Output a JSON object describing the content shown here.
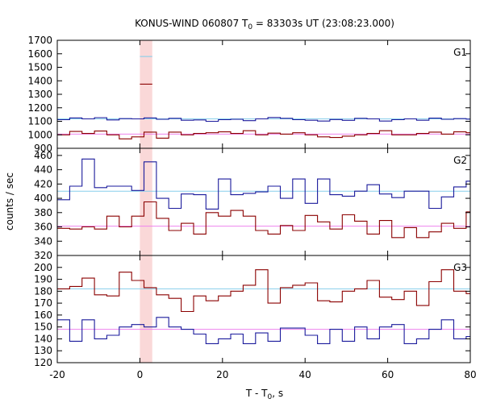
{
  "chart_data": {
    "type": "line",
    "title_main": "KONUS-WIND 060807 T",
    "title_sub": "0",
    "title_rest": " = 83303s UT (23:08:23.000)",
    "xlabel_main": "T - T",
    "xlabel_sub": "0",
    "xlabel_rest": ", s",
    "ylabel": "counts / sec",
    "xlim": [
      -20,
      80
    ],
    "xticks": [
      -20,
      0,
      20,
      40,
      60,
      80
    ],
    "highlight_band": [
      0,
      3
    ],
    "colors": {
      "low_series": "#8b0000",
      "high_series": "#1a1a9c",
      "low_background": "#ee82ee",
      "high_background": "#87ceeb",
      "band": "#f8c8c8"
    },
    "panels": [
      {
        "label": "G1",
        "ylim": [
          900,
          1700
        ],
        "yticks": [
          900,
          1000,
          1100,
          1200,
          1300,
          1400,
          1500,
          1600,
          1700
        ],
        "background_levels": [
          1005,
          1118
        ],
        "series": [
          {
            "color_key": "high_series",
            "edges": [
              -20,
              -17,
              -14,
              -11,
              -8,
              -5,
              -2,
              1,
              4,
              7,
              10,
              13,
              16,
              19,
              22,
              25,
              28,
              31,
              34,
              37,
              40,
              43,
              46,
              49,
              52,
              55,
              58,
              61,
              64,
              67,
              70,
              73,
              76,
              79,
              80
            ],
            "values": [
              1112,
              1125,
              1118,
              1127,
              1110,
              1120,
              1118,
              1125,
              1115,
              1122,
              1108,
              1110,
              1100,
              1112,
              1115,
              1105,
              1118,
              1128,
              1122,
              1112,
              1108,
              1102,
              1113,
              1107,
              1122,
              1118,
              1102,
              1112,
              1118,
              1108,
              1123,
              1115,
              1120,
              1116
            ]
          },
          {
            "color_key": "low_series",
            "edges": [
              -20,
              -17,
              -14,
              -11,
              -8,
              -5,
              -2,
              1,
              4,
              7,
              10,
              13,
              16,
              19,
              22,
              25,
              28,
              31,
              34,
              37,
              40,
              43,
              46,
              49,
              52,
              55,
              58,
              61,
              64,
              67,
              70,
              73,
              76,
              79,
              80
            ],
            "values": [
              1000,
              1025,
              1010,
              1028,
              1000,
              970,
              985,
              1020,
              975,
              1020,
              1000,
              1010,
              1015,
              1022,
              1010,
              1030,
              1000,
              1012,
              1005,
              1015,
              1000,
              985,
              980,
              990,
              1000,
              1010,
              1030,
              1000,
              1000,
              1010,
              1020,
              1005,
              1022,
              1015
            ]
          },
          {
            "color_key": "high_background",
            "edges": [
              0,
              3
            ],
            "values": [
              1580
            ]
          },
          {
            "color_key": "low_series",
            "edges": [
              0,
              3
            ],
            "values": [
              1375
            ]
          }
        ]
      },
      {
        "label": "G2",
        "ylim": [
          320,
          470
        ],
        "yticks": [
          320,
          340,
          360,
          380,
          400,
          420,
          440,
          460
        ],
        "background_levels": [
          361,
          410
        ],
        "series": [
          {
            "color_key": "high_series",
            "edges": [
              -20,
              -17,
              -14,
              -11,
              -8,
              -5,
              -2,
              1,
              4,
              7,
              10,
              13,
              16,
              19,
              22,
              25,
              28,
              31,
              34,
              37,
              40,
              43,
              46,
              49,
              52,
              55,
              58,
              61,
              64,
              67,
              70,
              73,
              76,
              79,
              80
            ],
            "values": [
              398,
              417,
              455,
              415,
              417,
              417,
              411,
              451,
              400,
              386,
              406,
              405,
              385,
              427,
              405,
              407,
              409,
              417,
              400,
              427,
              393,
              427,
              405,
              403,
              410,
              419,
              406,
              401,
              410,
              410,
              386,
              402,
              416,
              424
            ]
          },
          {
            "color_key": "low_series",
            "edges": [
              -20,
              -17,
              -14,
              -11,
              -8,
              -5,
              -2,
              1,
              4,
              7,
              10,
              13,
              16,
              19,
              22,
              25,
              28,
              31,
              34,
              37,
              40,
              43,
              46,
              49,
              52,
              55,
              58,
              61,
              64,
              67,
              70,
              73,
              76,
              79,
              80
            ],
            "values": [
              358,
              357,
              360,
              357,
              375,
              360,
              375,
              395,
              372,
              355,
              365,
              350,
              380,
              375,
              383,
              375,
              355,
              350,
              362,
              355,
              376,
              367,
              357,
              377,
              368,
              350,
              369,
              345,
              359,
              345,
              353,
              365,
              358,
              381
            ]
          }
        ]
      },
      {
        "label": "G3",
        "ylim": [
          120,
          210
        ],
        "yticks": [
          120,
          130,
          140,
          150,
          160,
          170,
          180,
          190,
          200
        ],
        "background_levels": [
          148,
          182
        ],
        "series": [
          {
            "color_key": "low_series",
            "edges": [
              -20,
              -17,
              -14,
              -11,
              -8,
              -5,
              -2,
              1,
              4,
              7,
              10,
              13,
              16,
              19,
              22,
              25,
              28,
              31,
              34,
              37,
              40,
              43,
              46,
              49,
              52,
              55,
              58,
              61,
              64,
              67,
              70,
              73,
              76,
              79,
              80
            ],
            "values": [
              182,
              184,
              191,
              177,
              176,
              196,
              189,
              183,
              177,
              174,
              163,
              176,
              172,
              176,
              180,
              185,
              198,
              170,
              183,
              185,
              187,
              172,
              171,
              180,
              182,
              189,
              175,
              173,
              180,
              168,
              188,
              198,
              180,
              178
            ]
          },
          {
            "color_key": "high_series",
            "edges": [
              -20,
              -17,
              -14,
              -11,
              -8,
              -5,
              -2,
              1,
              4,
              7,
              10,
              13,
              16,
              19,
              22,
              25,
              28,
              31,
              34,
              37,
              40,
              43,
              46,
              49,
              52,
              55,
              58,
              61,
              64,
              67,
              70,
              73,
              76,
              79,
              80
            ],
            "values": [
              156,
              138,
              156,
              140,
              143,
              150,
              152,
              150,
              158,
              150,
              148,
              144,
              136,
              140,
              144,
              136,
              145,
              138,
              149,
              149,
              143,
              136,
              148,
              138,
              150,
              140,
              150,
              152,
              136,
              140,
              148,
              156,
              140,
              142
            ]
          }
        ]
      }
    ]
  }
}
